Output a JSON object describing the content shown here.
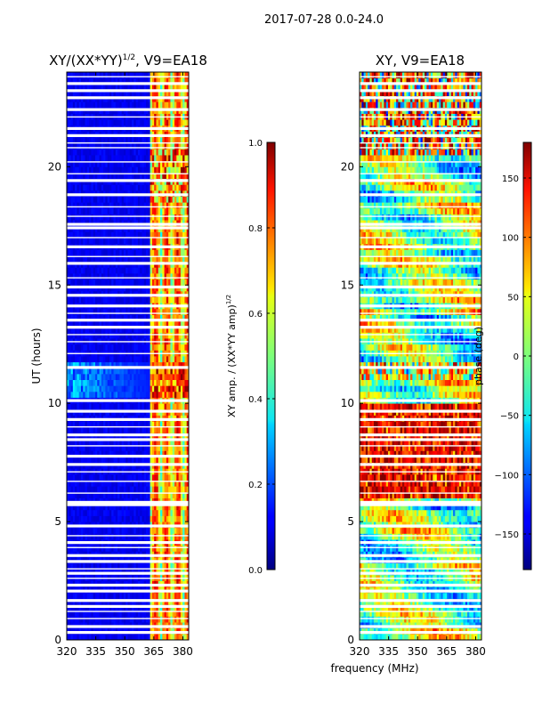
{
  "figure_title": "2017-07-28 0.0-24.0",
  "xlabel": "frequency (MHz)",
  "chart_data": [
    {
      "type": "heatmap",
      "title": "XY/(XX*YY)",
      "title_exponent": "1/2",
      "title_suffix": ", V9=EA18",
      "xlabel": "",
      "ylabel": "UT (hours)",
      "xlim": [
        320,
        383
      ],
      "ylim": [
        0,
        24
      ],
      "xticks": [
        "320",
        "335",
        "350",
        "365",
        "380"
      ],
      "xtick_values": [
        320,
        335,
        350,
        365,
        380
      ],
      "yticks": [
        "0",
        "5",
        "10",
        "15",
        "20"
      ],
      "ytick_values": [
        0,
        5,
        10,
        15,
        20
      ],
      "colorbar": {
        "label": "XY amp. / (XX*YY amp)",
        "label_exponent": "1/2",
        "range": [
          0.0,
          1.0
        ],
        "ticks": [
          "0.0",
          "0.2",
          "0.4",
          "0.6",
          "0.8",
          "1.0"
        ],
        "tick_values": [
          0.0,
          0.2,
          0.4,
          0.6,
          0.8,
          1.0
        ]
      },
      "colormap": "jet"
    },
    {
      "type": "heatmap",
      "title": "XY, V9=EA18",
      "xlabel": "frequency (MHz)",
      "ylabel": "",
      "xlim": [
        320,
        383
      ],
      "ylim": [
        0,
        24
      ],
      "xticks": [
        "320",
        "335",
        "350",
        "365",
        "380"
      ],
      "xtick_values": [
        320,
        335,
        350,
        365,
        380
      ],
      "yticks": [
        "0",
        "5",
        "10",
        "15",
        "20"
      ],
      "ytick_values": [
        0,
        5,
        10,
        15,
        20
      ],
      "colorbar": {
        "label": "phase (deg)",
        "range": [
          -180,
          180
        ],
        "ticks": [
          "−150",
          "−100",
          "−50",
          "0",
          "50",
          "100",
          "150"
        ],
        "tick_values": [
          -150,
          -100,
          -50,
          0,
          50,
          100,
          150
        ]
      },
      "colormap": "jet"
    }
  ],
  "flagged_time_rows_hours": [
    0.3,
    0.55,
    1.4,
    1.65,
    2.05,
    2.3,
    2.8,
    3.3,
    3.55,
    4.1,
    4.8,
    5.7,
    5.8,
    7.4,
    7.75,
    8.45,
    8.65,
    9.3,
    9.65,
    10.1,
    11.5,
    13.2,
    13.5,
    14.1,
    14.55,
    14.9,
    15.9,
    16.6,
    17.4,
    17.55,
    18.8,
    19.4,
    21.3,
    21.6,
    22.4,
    22.9,
    23.2,
    23.5
  ],
  "flagged_time_rows_thin_hours": [
    0.9,
    1.2,
    2.6,
    3.0,
    3.9,
    4.4,
    6.2,
    6.7,
    7.1,
    8.2,
    9.0,
    12.1,
    12.6,
    12.9,
    13.8,
    15.3,
    16.2,
    17.0,
    17.9,
    18.3,
    19.7,
    20.2,
    20.8,
    21.0,
    22.1,
    23.8
  ]
}
